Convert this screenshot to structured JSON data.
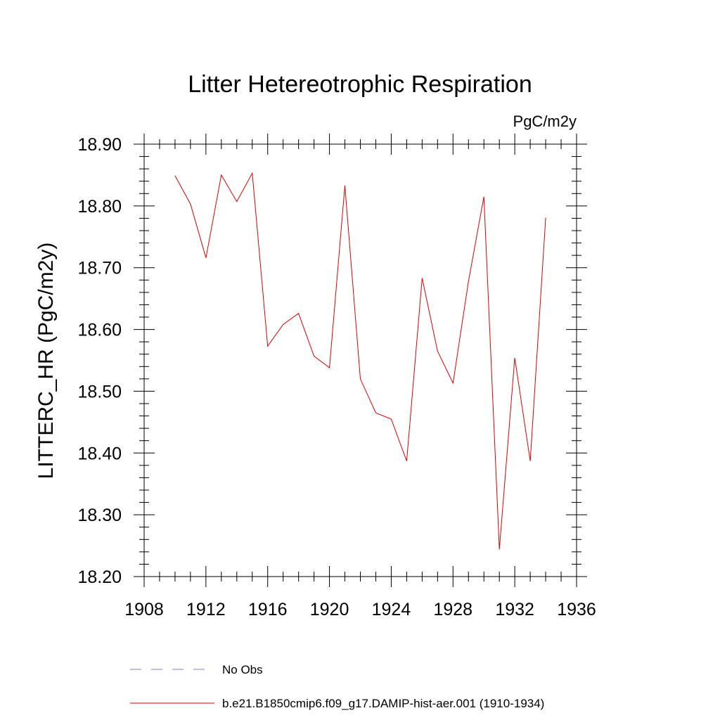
{
  "chart_data": {
    "type": "line",
    "title": "Litter Hetereotrophic Respiration",
    "units": "PgC/m2y",
    "ylabel": "LITTERC_HR  (PgC/m2y)",
    "xlabel": "",
    "xlim": [
      1908,
      1936
    ],
    "ylim": [
      18.2,
      18.9
    ],
    "x_ticks": [
      1908,
      1912,
      1916,
      1920,
      1924,
      1928,
      1932,
      1936
    ],
    "x_tick_labels": [
      "1908",
      "1912",
      "1916",
      "1920",
      "1924",
      "1928",
      "1932",
      "1936"
    ],
    "y_ticks": [
      18.2,
      18.3,
      18.4,
      18.5,
      18.6,
      18.7,
      18.8,
      18.9
    ],
    "y_tick_labels": [
      "18.20",
      "18.30",
      "18.40",
      "18.50",
      "18.60",
      "18.70",
      "18.80",
      "18.90"
    ],
    "grid": false,
    "legend_position": "bottom",
    "legend": [
      {
        "label": "No Obs",
        "color": "#8080c0",
        "style": "dashed"
      },
      {
        "label": "b.e21.B1850cmip6.f09_g17.DAMIP-hist-aer.001 (1910-1934)",
        "color": "#e00000",
        "style": "solid"
      }
    ],
    "series": [
      {
        "name": "b.e21.B1850cmip6.f09_g17.DAMIP-hist-aer.001 (1910-1934)",
        "color": "#e00000",
        "x": [
          1910,
          1911,
          1912,
          1913,
          1914,
          1915,
          1916,
          1917,
          1918,
          1919,
          1920,
          1921,
          1922,
          1923,
          1924,
          1925,
          1926,
          1927,
          1928,
          1929,
          1930,
          1931,
          1932,
          1933,
          1934
        ],
        "y": [
          18.849,
          18.803,
          18.716,
          18.85,
          18.807,
          18.853,
          18.573,
          18.608,
          18.626,
          18.557,
          18.538,
          18.833,
          18.52,
          18.465,
          18.455,
          18.387,
          18.683,
          18.565,
          18.513,
          18.678,
          18.815,
          18.244,
          18.554,
          18.387,
          18.781
        ]
      }
    ]
  }
}
